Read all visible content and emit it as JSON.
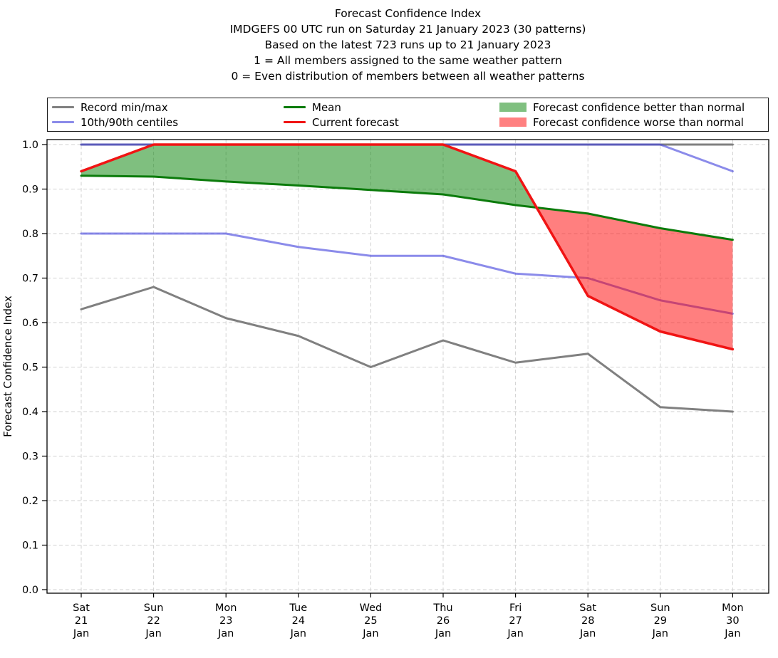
{
  "title_lines": [
    "Forecast Confidence Index",
    "IMDGEFS 00 UTC run on Saturday 21 January 2023 (30 patterns)",
    "Based on the latest 723 runs up to 21 January 2023",
    "1 = All members assigned to the same weather pattern",
    "0 = Even distribution of members between all weather patterns"
  ],
  "legend": {
    "items": [
      {
        "label": "Record min/max",
        "swatch": "line",
        "color": "#808080"
      },
      {
        "label": "10th/90th centiles",
        "swatch": "line",
        "color": "#8b8be9"
      },
      {
        "label": "Mean",
        "swatch": "line",
        "color": "#0b7b0b"
      },
      {
        "label": "Current forecast",
        "swatch": "line",
        "color": "#f01414"
      },
      {
        "label": "Forecast confidence better than normal",
        "swatch": "patch",
        "color": "#80c080"
      },
      {
        "label": "Forecast confidence worse than normal",
        "swatch": "patch",
        "color": "#ff8080"
      }
    ]
  },
  "chart_data": {
    "type": "line",
    "title": "Forecast Confidence Index",
    "ylabel": "Forecast Confidence Index",
    "grid": true,
    "legend_position": "top",
    "ylim": [
      -0.008,
      1.013
    ],
    "x_tick_lines": [
      [
        "Sat",
        "21",
        "Jan"
      ],
      [
        "Sun",
        "22",
        "Jan"
      ],
      [
        "Mon",
        "23",
        "Jan"
      ],
      [
        "Tue",
        "24",
        "Jan"
      ],
      [
        "Wed",
        "25",
        "Jan"
      ],
      [
        "Thu",
        "26",
        "Jan"
      ],
      [
        "Fri",
        "27",
        "Jan"
      ],
      [
        "Sat",
        "28",
        "Jan"
      ],
      [
        "Sun",
        "29",
        "Jan"
      ],
      [
        "Mon",
        "30",
        "Jan"
      ]
    ],
    "yticks": [
      "0.0",
      "0.1",
      "0.2",
      "0.3",
      "0.4",
      "0.5",
      "0.6",
      "0.7",
      "0.8",
      "0.9",
      "1.0"
    ],
    "series": [
      {
        "name": "Record max",
        "legend_group": "Record min/max",
        "color": "#808080",
        "width": 3,
        "layer": "back",
        "values": [
          1.0,
          1.0,
          1.0,
          1.0,
          1.0,
          1.0,
          1.0,
          1.0,
          1.0,
          1.0
        ]
      },
      {
        "name": "Record min",
        "legend_group": "Record min/max",
        "color": "#808080",
        "width": 3,
        "layer": "back",
        "values": [
          0.63,
          0.68,
          0.61,
          0.57,
          0.5,
          0.56,
          0.51,
          0.53,
          0.41,
          0.4
        ]
      },
      {
        "name": "90th centile",
        "legend_group": "10th/90th centiles",
        "color": "rgba(68,68,221,0.62)",
        "width": 3,
        "layer": "back",
        "values": [
          1.0,
          1.0,
          1.0,
          1.0,
          1.0,
          1.0,
          1.0,
          1.0,
          1.0,
          0.94
        ]
      },
      {
        "name": "10th centile",
        "legend_group": "10th/90th centiles",
        "color": "rgba(68,68,221,0.62)",
        "width": 3,
        "layer": "back",
        "values": [
          0.8,
          0.8,
          0.8,
          0.77,
          0.75,
          0.75,
          0.71,
          0.7,
          0.65,
          0.62
        ]
      },
      {
        "name": "Mean",
        "legend_group": "Mean",
        "color": "#0b7b0b",
        "width": 3,
        "layer": "front",
        "values": [
          0.93,
          0.928,
          0.917,
          0.908,
          0.898,
          0.888,
          0.864,
          0.845,
          0.812,
          0.786
        ]
      },
      {
        "name": "Current forecast",
        "legend_group": "Current forecast",
        "color": "#f01414",
        "width": 3.5,
        "layer": "front",
        "values": [
          0.94,
          1.0,
          1.0,
          1.0,
          1.0,
          1.0,
          0.94,
          0.66,
          0.58,
          0.54
        ]
      }
    ],
    "bands": {
      "series_a": "Current forecast",
      "series_b": "Mean",
      "above_color": "rgba(0,128,0,0.5)",
      "below_color": "rgba(255,0,0,0.5)",
      "above_label": "Forecast confidence better than normal",
      "below_label": "Forecast confidence worse than normal"
    }
  }
}
